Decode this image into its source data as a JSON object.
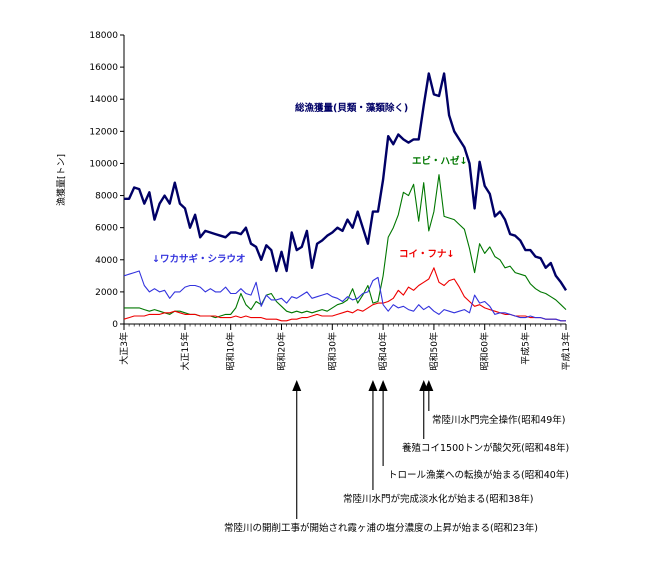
{
  "chart_data": {
    "type": "line",
    "ylabel": "漁獲量[トン]",
    "ylim": [
      0,
      18000
    ],
    "yticks": [
      "0",
      "2000",
      "4000",
      "6000",
      "8000",
      "10000",
      "12000",
      "14000",
      "16000",
      "18000"
    ],
    "xlim": [
      1914,
      2001
    ],
    "xticks": [
      {
        "x": 1914,
        "label": "大正3年"
      },
      {
        "x": 1926,
        "label": "大正15年"
      },
      {
        "x": 1935,
        "label": "昭和10年"
      },
      {
        "x": 1945,
        "label": "昭和20年"
      },
      {
        "x": 1955,
        "label": "昭和30年"
      },
      {
        "x": 1965,
        "label": "昭和40年"
      },
      {
        "x": 1975,
        "label": "昭和50年"
      },
      {
        "x": 1985,
        "label": "昭和60年"
      },
      {
        "x": 1993,
        "label": "平成5年"
      },
      {
        "x": 2001,
        "label": "平成13年"
      }
    ],
    "series": [
      {
        "name": "総漁獲量(貝類・藻類除く)",
        "label": "総漁獲量(貝類・藻類除く)",
        "color": "#000066",
        "x": [
          1914,
          1915,
          1916,
          1917,
          1918,
          1919,
          1920,
          1921,
          1922,
          1923,
          1924,
          1925,
          1926,
          1927,
          1928,
          1929,
          1930,
          1931,
          1932,
          1933,
          1934,
          1935,
          1936,
          1937,
          1938,
          1939,
          1940,
          1941,
          1942,
          1943,
          1944,
          1945,
          1946,
          1947,
          1948,
          1949,
          1950,
          1951,
          1952,
          1953,
          1954,
          1955,
          1956,
          1957,
          1958,
          1959,
          1960,
          1961,
          1962,
          1963,
          1964,
          1965,
          1966,
          1967,
          1968,
          1969,
          1970,
          1971,
          1972,
          1973,
          1974,
          1975,
          1976,
          1977,
          1978,
          1979,
          1980,
          1981,
          1982,
          1983,
          1984,
          1985,
          1986,
          1987,
          1988,
          1989,
          1990,
          1991,
          1992,
          1993,
          1994,
          1995,
          1996,
          1997,
          1998,
          1999,
          2000,
          2001
        ],
        "y": [
          7800,
          7800,
          8500,
          8400,
          7500,
          8200,
          6500,
          7500,
          8000,
          7500,
          8800,
          7500,
          7200,
          6000,
          6800,
          5400,
          5800,
          5700,
          5600,
          5500,
          5400,
          5700,
          5700,
          5600,
          6000,
          5000,
          4800,
          4000,
          4900,
          4600,
          3300,
          4500,
          3300,
          5700,
          4600,
          4800,
          5800,
          3500,
          5000,
          5200,
          5500,
          5700,
          6000,
          5800,
          6500,
          6000,
          7000,
          6000,
          5000,
          7000,
          7000,
          9000,
          11700,
          11200,
          11800,
          11500,
          11300,
          11500,
          11500,
          13600,
          15600,
          14300,
          14200,
          15600,
          13000,
          12000,
          11500,
          11000,
          10000,
          7200,
          10100,
          8600,
          8100,
          6700,
          7000,
          6500,
          5600,
          5500,
          5200,
          4600,
          4600,
          4200,
          4100,
          3500,
          3800,
          3000,
          2600,
          2100
        ]
      },
      {
        "name": "エビ・ハゼ",
        "label": "エビ・ハゼ↓",
        "color": "#007700",
        "x": [
          1914,
          1915,
          1916,
          1917,
          1918,
          1919,
          1920,
          1921,
          1922,
          1923,
          1924,
          1925,
          1926,
          1927,
          1928,
          1929,
          1930,
          1931,
          1932,
          1933,
          1934,
          1935,
          1936,
          1937,
          1938,
          1939,
          1940,
          1941,
          1942,
          1943,
          1944,
          1945,
          1946,
          1947,
          1948,
          1949,
          1950,
          1951,
          1952,
          1953,
          1954,
          1955,
          1956,
          1957,
          1958,
          1959,
          1960,
          1961,
          1962,
          1963,
          1964,
          1965,
          1966,
          1967,
          1968,
          1969,
          1970,
          1971,
          1972,
          1973,
          1974,
          1975,
          1976,
          1977,
          1978,
          1979,
          1980,
          1981,
          1982,
          1983,
          1984,
          1985,
          1986,
          1987,
          1988,
          1989,
          1990,
          1991,
          1992,
          1993,
          1994,
          1995,
          1996,
          1997,
          1998,
          1999,
          2000,
          2001
        ],
        "y": [
          1000,
          1000,
          1000,
          1000,
          900,
          800,
          900,
          800,
          700,
          600,
          800,
          800,
          700,
          600,
          600,
          500,
          500,
          500,
          400,
          500,
          600,
          600,
          1000,
          1900,
          1200,
          900,
          1400,
          1200,
          1800,
          1900,
          1400,
          1100,
          800,
          700,
          800,
          700,
          800,
          700,
          800,
          900,
          800,
          1000,
          1200,
          1300,
          1500,
          2200,
          1300,
          1800,
          2400,
          1300,
          1400,
          3000,
          5400,
          6000,
          6800,
          8200,
          8000,
          8700,
          6400,
          8800,
          5800,
          7000,
          9300,
          6700,
          6600,
          6500,
          6200,
          5900,
          4700,
          3200,
          5000,
          4400,
          4800,
          4200,
          4000,
          3500,
          3600,
          3200,
          3100,
          3000,
          2500,
          2200,
          2000,
          1900,
          1700,
          1500,
          1200,
          900
        ]
      },
      {
        "name": "コイ・フナ",
        "label": "コイ・フナ↓",
        "color": "#ee0000",
        "x": [
          1914,
          1915,
          1916,
          1917,
          1918,
          1919,
          1920,
          1921,
          1922,
          1923,
          1924,
          1925,
          1926,
          1927,
          1928,
          1929,
          1930,
          1931,
          1932,
          1933,
          1934,
          1935,
          1936,
          1937,
          1938,
          1939,
          1940,
          1941,
          1942,
          1943,
          1944,
          1945,
          1946,
          1947,
          1948,
          1949,
          1950,
          1951,
          1952,
          1953,
          1954,
          1955,
          1956,
          1957,
          1958,
          1959,
          1960,
          1961,
          1962,
          1963,
          1964,
          1965,
          1966,
          1967,
          1968,
          1969,
          1970,
          1971,
          1972,
          1973,
          1974,
          1975,
          1976,
          1977,
          1978,
          1979,
          1980,
          1981,
          1982,
          1983,
          1984,
          1985,
          1986,
          1987,
          1988,
          1989,
          1990,
          1991,
          1992,
          1993,
          1994,
          1995,
          1996,
          1997,
          1998,
          1999,
          2000,
          2001
        ],
        "y": [
          300,
          400,
          500,
          500,
          500,
          600,
          600,
          600,
          700,
          700,
          800,
          700,
          600,
          600,
          600,
          500,
          500,
          500,
          500,
          400,
          400,
          400,
          500,
          400,
          500,
          400,
          400,
          400,
          300,
          300,
          300,
          200,
          200,
          300,
          300,
          400,
          400,
          500,
          600,
          500,
          500,
          500,
          600,
          700,
          800,
          700,
          900,
          800,
          1000,
          1200,
          1300,
          1300,
          1400,
          1600,
          2100,
          1800,
          2300,
          2100,
          2400,
          2600,
          2800,
          3500,
          2600,
          2400,
          2700,
          2800,
          2300,
          1700,
          1400,
          1100,
          1200,
          1000,
          900,
          800,
          700,
          600,
          600,
          500,
          500,
          500,
          400,
          400,
          400,
          300,
          300,
          300,
          200,
          200
        ]
      },
      {
        "name": "ワカサギ・シラウオ",
        "label": "↓ワカサギ・シラウオ",
        "color": "#3333dd",
        "x": [
          1914,
          1915,
          1916,
          1917,
          1918,
          1919,
          1920,
          1921,
          1922,
          1923,
          1924,
          1925,
          1926,
          1927,
          1928,
          1929,
          1930,
          1931,
          1932,
          1933,
          1934,
          1935,
          1936,
          1937,
          1938,
          1939,
          1940,
          1941,
          1942,
          1943,
          1944,
          1945,
          1946,
          1947,
          1948,
          1949,
          1950,
          1951,
          1952,
          1953,
          1954,
          1955,
          1956,
          1957,
          1958,
          1959,
          1960,
          1961,
          1962,
          1963,
          1964,
          1965,
          1966,
          1967,
          1968,
          1969,
          1970,
          1971,
          1972,
          1973,
          1974,
          1975,
          1976,
          1977,
          1978,
          1979,
          1980,
          1981,
          1982,
          1983,
          1984,
          1985,
          1986,
          1987,
          1988,
          1989,
          1990,
          1991,
          1992,
          1993,
          1994,
          1995,
          1996,
          1997,
          1998,
          1999,
          2000,
          2001
        ],
        "y": [
          3000,
          3100,
          3200,
          3300,
          2400,
          2000,
          2200,
          2000,
          2100,
          1600,
          2000,
          2000,
          2300,
          2400,
          2400,
          2300,
          2000,
          2200,
          2000,
          2000,
          2300,
          1900,
          1900,
          2200,
          1900,
          1800,
          2600,
          1100,
          1800,
          1500,
          1500,
          1600,
          1300,
          1700,
          1600,
          1800,
          2000,
          1600,
          1700,
          1800,
          1900,
          1700,
          1600,
          1400,
          1700,
          1500,
          1600,
          1900,
          2000,
          2700,
          2900,
          1200,
          800,
          1200,
          1000,
          1100,
          900,
          800,
          1200,
          900,
          1100,
          800,
          600,
          900,
          800,
          700,
          800,
          900,
          700,
          1800,
          1300,
          1400,
          1100,
          600,
          700,
          700,
          600,
          500,
          400,
          400,
          500,
          400,
          400,
          300,
          300,
          300,
          200,
          200
        ]
      }
    ],
    "events": [
      {
        "year": 1948,
        "text": "常陸川の開削工事が開始され霞ヶ浦の塩分濃度の上昇が始まる(昭和23年)"
      },
      {
        "year": 1963,
        "text": "常陸川水門が完成淡水化が始まる(昭和38年)"
      },
      {
        "year": 1965,
        "text": "トロール漁業への転換が始まる(昭和40年)"
      },
      {
        "year": 1973,
        "text": "養殖コイ1500トンが酸欠死(昭和48年)"
      },
      {
        "year": 1974,
        "text": "常陸川水門完全操作(昭和49年)"
      }
    ]
  }
}
